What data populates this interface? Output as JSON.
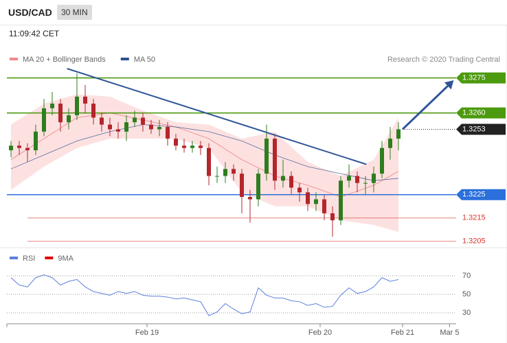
{
  "header": {
    "symbol": "USD/CAD",
    "timeframe": "30 MIN",
    "time": "11:09:42 CET"
  },
  "chart_data": [
    {
      "type": "candlestick",
      "credit": "Research © 2020 Trading Central",
      "up_color": "#2e7d1e",
      "down_color": "#b3262b",
      "xlim": [
        0,
        54
      ],
      "ylim": [
        1.3202,
        1.3279
      ],
      "open": [
        1.3244,
        1.3246,
        1.3245,
        1.3244,
        1.3252,
        1.3262,
        1.3264,
        1.3256,
        1.3259,
        1.3267,
        1.3264,
        1.3258,
        1.3255,
        1.3253,
        1.3252,
        1.3256,
        1.3258,
        1.3255,
        1.3253,
        1.3254,
        1.3249,
        1.3246,
        1.3245,
        1.3246,
        1.3245,
        1.3233,
        1.3233,
        1.3236,
        1.3234,
        1.3224,
        1.3223,
        1.3234,
        1.3249,
        1.3231,
        1.3233,
        1.3228,
        1.3226,
        1.3221,
        1.3223,
        1.3217,
        1.3214,
        1.3231,
        1.3233,
        1.323,
        1.323,
        1.3234,
        1.3245,
        1.3249
      ],
      "high": [
        1.3248,
        1.3248,
        1.3247,
        1.3255,
        1.3266,
        1.3269,
        1.3266,
        1.3262,
        1.3277,
        1.3272,
        1.3266,
        1.326,
        1.3258,
        1.3256,
        1.3259,
        1.3261,
        1.326,
        1.3257,
        1.3257,
        1.3256,
        1.3251,
        1.3249,
        1.3248,
        1.3248,
        1.3247,
        1.3237,
        1.3239,
        1.3238,
        1.3236,
        1.3227,
        1.3236,
        1.3255,
        1.3251,
        1.324,
        1.3235,
        1.323,
        1.3228,
        1.3226,
        1.3225,
        1.322,
        1.3233,
        1.3238,
        1.3235,
        1.3233,
        1.3237,
        1.3248,
        1.3254,
        1.3256
      ],
      "low": [
        1.3241,
        1.3242,
        1.3239,
        1.3242,
        1.325,
        1.3259,
        1.3252,
        1.3253,
        1.3257,
        1.326,
        1.3255,
        1.3252,
        1.325,
        1.3249,
        1.3248,
        1.3254,
        1.3252,
        1.3251,
        1.325,
        1.3246,
        1.3244,
        1.3243,
        1.3243,
        1.3242,
        1.3229,
        1.323,
        1.323,
        1.3231,
        1.3217,
        1.3213,
        1.322,
        1.3231,
        1.3227,
        1.3228,
        1.3225,
        1.3222,
        1.3218,
        1.3218,
        1.3214,
        1.3207,
        1.3212,
        1.3228,
        1.3226,
        1.3225,
        1.3226,
        1.3232,
        1.324,
        1.3244
      ],
      "close": [
        1.3246,
        1.3245,
        1.3244,
        1.3252,
        1.3262,
        1.3264,
        1.3256,
        1.3259,
        1.3267,
        1.3264,
        1.3258,
        1.3255,
        1.3253,
        1.3252,
        1.3256,
        1.3258,
        1.3255,
        1.3253,
        1.3254,
        1.3249,
        1.3246,
        1.3245,
        1.3246,
        1.3245,
        1.3233,
        1.3233,
        1.3236,
        1.3234,
        1.3224,
        1.3223,
        1.3234,
        1.3249,
        1.3231,
        1.3233,
        1.3228,
        1.3226,
        1.3221,
        1.3223,
        1.3217,
        1.3214,
        1.3231,
        1.3233,
        1.323,
        1.323,
        1.3234,
        1.3245,
        1.3249,
        1.3253
      ],
      "overlays": [
        {
          "name": "MA 20 + Bollinger Bands",
          "color": "#ef8b8b",
          "band_color": "#fde1e1",
          "x": [
            0,
            4,
            8,
            12,
            16,
            20,
            24,
            28,
            32,
            36,
            40,
            44,
            47
          ],
          "values": [
            1.324,
            1.3249,
            1.3258,
            1.326,
            1.3257,
            1.3254,
            1.3249,
            1.324,
            1.3233,
            1.3229,
            1.3224,
            1.3229,
            1.3235
          ],
          "upper": [
            1.3255,
            1.3264,
            1.3268,
            1.3267,
            1.3261,
            1.3256,
            1.3255,
            1.3249,
            1.3252,
            1.3239,
            1.3233,
            1.324,
            1.3258
          ],
          "lower": [
            1.3227,
            1.3237,
            1.3245,
            1.3249,
            1.3249,
            1.3249,
            1.3245,
            1.3226,
            1.322,
            1.322,
            1.3214,
            1.3212,
            1.3209
          ]
        },
        {
          "name": "MA 50",
          "color": "#2f4f8f",
          "x": [
            0,
            4,
            8,
            12,
            16,
            20,
            24,
            28,
            32,
            36,
            40,
            44,
            47
          ],
          "values": [
            1.3236,
            1.3242,
            1.3248,
            1.3252,
            1.3255,
            1.3254,
            1.3252,
            1.3248,
            1.3242,
            1.3237,
            1.3234,
            1.3231,
            1.3232
          ]
        }
      ],
      "trendline": {
        "color": "#2f5597",
        "x": [
          6.8,
          43.1
        ],
        "values": [
          1.3279,
          1.3238
        ]
      },
      "arrow": {
        "color": "#2f5597",
        "x": [
          47.5,
          53.7
        ],
        "values": [
          1.3253,
          1.3274
        ]
      },
      "levels": [
        1.3275,
        {
          "value": 1.326,
          "label": "1.3260"
        },
        1.3253,
        1.3225,
        1.3215,
        1.3205
      ],
      "level_colors": [
        "#4c9a0e",
        "#4c9a0e",
        "#222222",
        "#2a6fdb",
        "#d8342c",
        "#d8342c"
      ],
      "level_styles": [
        "solid",
        "solid",
        "dotted",
        "solid",
        "thin",
        "thin"
      ],
      "level_boxed": [
        true,
        true,
        true,
        true,
        false,
        false
      ]
    },
    {
      "type": "line",
      "xlim": [
        0,
        54
      ],
      "ylim": [
        20,
        93
      ],
      "yticks": [
        70,
        50,
        30
      ],
      "xticks": [
        {
          "value": 16.5,
          "label": "Feb 19"
        },
        {
          "value": 37.5,
          "label": "Feb 20"
        },
        {
          "value": 47.5,
          "label": "Feb 21"
        },
        {
          "value": 53.2,
          "label": "Mar 5"
        }
      ],
      "series": [
        {
          "name": "RSI",
          "color": "#5b7fdc",
          "values": [
            68,
            60,
            58,
            68,
            71,
            68,
            60,
            64,
            66,
            58,
            53,
            51,
            49,
            53,
            51,
            53,
            49,
            48,
            48,
            47,
            45,
            46,
            44,
            42,
            27,
            31,
            40,
            34,
            29,
            31,
            57,
            49,
            46,
            46,
            43,
            42,
            38,
            40,
            36,
            37,
            49,
            57,
            51,
            53,
            58,
            68,
            64,
            66
          ]
        },
        {
          "name": "9MA",
          "color": "#e00000"
        }
      ]
    }
  ]
}
